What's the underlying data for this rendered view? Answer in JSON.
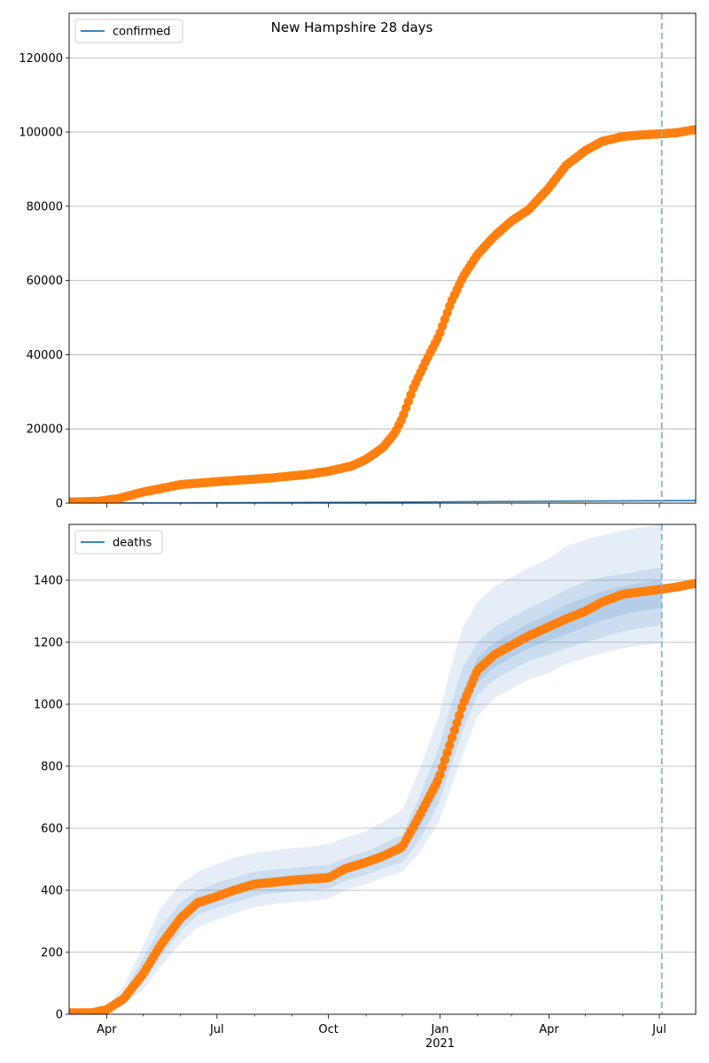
{
  "figure": {
    "title": "New Hampshire 28 days",
    "year_label": "2021",
    "x_tick_labels": [
      "Apr",
      "Jul",
      "Oct",
      "Jan",
      "Apr",
      "Jul"
    ]
  },
  "colors": {
    "observed": "#ff7f0e",
    "model": "#1f77b4",
    "band": "#4a89c8",
    "grid": "#b0b0b0",
    "forecast_line": "#7fb1da"
  },
  "chart_data": [
    {
      "type": "scatter",
      "name": "confirmed",
      "legend": "confirmed",
      "legend_position": "upper-left",
      "grid": "y",
      "title": "New Hampshire 28 days",
      "xlim": [
        "2020-03-01",
        "2021-07-31"
      ],
      "ylim": [
        0,
        132000
      ],
      "y_ticks": [
        0,
        20000,
        40000,
        60000,
        80000,
        100000,
        120000
      ],
      "forecast_start": "2021-07-03",
      "model_line": {
        "name": "confirmed",
        "x": [
          "2020-03-01",
          "2020-10-01",
          "2021-07-31"
        ],
        "y": [
          0,
          200,
          700
        ]
      },
      "observed": {
        "x": [
          "2020-03-01",
          "2020-03-25",
          "2020-04-10",
          "2020-05-01",
          "2020-06-01",
          "2020-07-01",
          "2020-08-15",
          "2020-09-15",
          "2020-10-01",
          "2020-10-20",
          "2020-11-01",
          "2020-11-15",
          "2020-11-25",
          "2020-12-01",
          "2020-12-10",
          "2020-12-20",
          "2020-12-31",
          "2021-01-10",
          "2021-01-20",
          "2021-02-01",
          "2021-02-15",
          "2021-03-01",
          "2021-03-15",
          "2021-04-01",
          "2021-04-15",
          "2021-05-01",
          "2021-05-15",
          "2021-06-01",
          "2021-06-15",
          "2021-07-01",
          "2021-07-15",
          "2021-07-31"
        ],
        "y": [
          300,
          500,
          1200,
          3000,
          5000,
          5800,
          6800,
          7800,
          8600,
          10000,
          11800,
          15000,
          19000,
          23000,
          31000,
          38000,
          45000,
          54000,
          61000,
          67000,
          72000,
          76000,
          79000,
          85000,
          91000,
          95000,
          97500,
          98800,
          99200,
          99500,
          99800,
          100700
        ]
      }
    },
    {
      "type": "scatter",
      "name": "deaths",
      "legend": "deaths",
      "legend_position": "upper-left",
      "grid": "y",
      "xlim": [
        "2020-03-01",
        "2021-07-31"
      ],
      "ylim": [
        0,
        1580
      ],
      "y_ticks": [
        0,
        200,
        400,
        600,
        800,
        1000,
        1200,
        1400
      ],
      "forecast_start": "2021-07-03",
      "observed": {
        "x": [
          "2020-03-01",
          "2020-03-20",
          "2020-04-01",
          "2020-04-15",
          "2020-05-01",
          "2020-05-15",
          "2020-06-01",
          "2020-06-15",
          "2020-07-01",
          "2020-07-15",
          "2020-08-01",
          "2020-08-15",
          "2020-09-01",
          "2020-09-15",
          "2020-10-01",
          "2020-10-15",
          "2020-11-01",
          "2020-11-15",
          "2020-12-01",
          "2020-12-15",
          "2020-12-31",
          "2021-01-10",
          "2021-01-20",
          "2021-02-01",
          "2021-02-15",
          "2021-03-01",
          "2021-03-15",
          "2021-04-01",
          "2021-04-15",
          "2021-05-01",
          "2021-05-15",
          "2021-06-01",
          "2021-06-15",
          "2021-07-01",
          "2021-07-15",
          "2021-07-31"
        ],
        "y": [
          5,
          5,
          15,
          50,
          130,
          220,
          310,
          360,
          380,
          400,
          420,
          425,
          432,
          436,
          440,
          470,
          490,
          510,
          540,
          640,
          760,
          880,
          1000,
          1110,
          1160,
          1190,
          1220,
          1250,
          1275,
          1300,
          1330,
          1355,
          1362,
          1370,
          1378,
          1390
        ]
      },
      "bands": {
        "x": [
          "2020-03-01",
          "2020-03-20",
          "2020-04-01",
          "2020-04-15",
          "2020-05-01",
          "2020-05-15",
          "2020-06-01",
          "2020-06-15",
          "2020-07-01",
          "2020-07-15",
          "2020-08-01",
          "2020-08-15",
          "2020-09-01",
          "2020-09-15",
          "2020-10-01",
          "2020-10-15",
          "2020-11-01",
          "2020-11-15",
          "2020-12-01",
          "2020-12-15",
          "2020-12-31",
          "2021-01-10",
          "2021-01-20",
          "2021-02-01",
          "2021-02-15",
          "2021-03-01",
          "2021-03-15",
          "2021-04-01",
          "2021-04-15",
          "2021-05-01",
          "2021-05-15",
          "2021-06-01",
          "2021-06-15",
          "2021-07-01",
          "2021-07-03"
        ],
        "outer_low": [
          0,
          0,
          5,
          30,
          80,
          150,
          230,
          280,
          305,
          325,
          345,
          355,
          362,
          365,
          372,
          400,
          420,
          440,
          460,
          520,
          620,
          730,
          840,
          960,
          1020,
          1050,
          1080,
          1100,
          1130,
          1150,
          1165,
          1180,
          1190,
          1195,
          1200
        ],
        "outer_high": [
          0,
          0,
          25,
          90,
          220,
          340,
          420,
          460,
          485,
          505,
          520,
          528,
          535,
          540,
          550,
          570,
          590,
          620,
          660,
          790,
          960,
          1120,
          1250,
          1330,
          1380,
          1410,
          1440,
          1470,
          1510,
          1530,
          1545,
          1560,
          1570,
          1580,
          1580
        ],
        "mid_low": [
          0,
          0,
          8,
          38,
          100,
          180,
          270,
          320,
          345,
          360,
          380,
          390,
          396,
          400,
          405,
          430,
          450,
          470,
          490,
          560,
          680,
          800,
          920,
          1030,
          1080,
          1110,
          1140,
          1160,
          1180,
          1200,
          1215,
          1235,
          1245,
          1255,
          1260
        ],
        "mid_high": [
          0,
          0,
          20,
          70,
          180,
          280,
          360,
          400,
          425,
          440,
          460,
          466,
          472,
          476,
          482,
          505,
          525,
          550,
          580,
          700,
          860,
          1000,
          1120,
          1200,
          1250,
          1280,
          1310,
          1340,
          1370,
          1395,
          1410,
          1420,
          1430,
          1440,
          1440
        ],
        "inner_low": [
          0,
          0,
          10,
          45,
          115,
          200,
          290,
          340,
          365,
          385,
          405,
          412,
          420,
          425,
          430,
          455,
          475,
          495,
          520,
          600,
          720,
          850,
          970,
          1070,
          1120,
          1150,
          1180,
          1205,
          1225,
          1250,
          1270,
          1290,
          1300,
          1310,
          1310
        ],
        "inner_high": [
          0,
          0,
          15,
          58,
          150,
          245,
          330,
          370,
          395,
          415,
          435,
          442,
          448,
          452,
          458,
          482,
          502,
          525,
          555,
          660,
          800,
          920,
          1040,
          1150,
          1200,
          1230,
          1260,
          1290,
          1320,
          1345,
          1365,
          1380,
          1390,
          1400,
          1400
        ]
      }
    }
  ]
}
